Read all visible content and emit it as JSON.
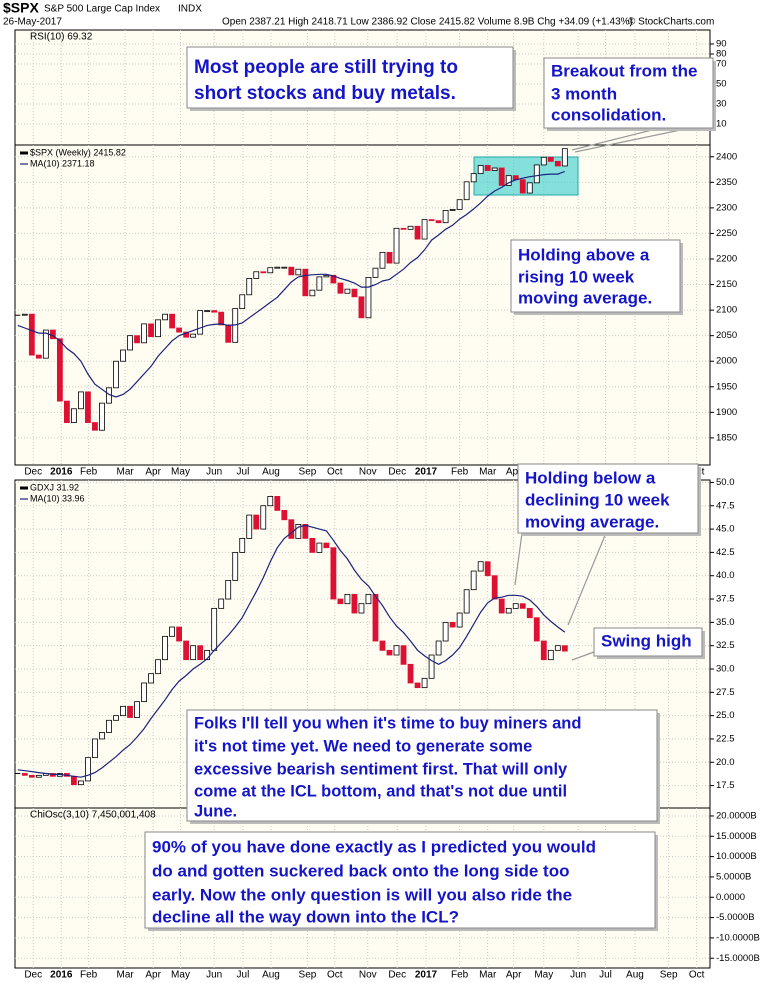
{
  "header": {
    "symbol": "$SPX",
    "name": "S&P 500 Large Cap Index",
    "exchange": "INDX",
    "date": "26-May-2017",
    "quote": "Open 2387.21  High 2418.71  Low 2386.92  Close 2415.82  Volume 8.9B  Chg +34.09 (+1.43%)",
    "credit": "© StockCharts.com"
  },
  "chart_data": [
    {
      "type": "indicator",
      "label": "RSI(10) 69.32",
      "ylim": [
        -11,
        104
      ],
      "yticks": [
        90,
        80,
        70,
        50,
        30,
        10
      ],
      "annotations": [
        {
          "lines": [
            "Most people are still trying to",
            "short stocks and buy metals."
          ]
        },
        {
          "lines": [
            "Breakout from the",
            "3 month",
            "consolidation."
          ]
        }
      ]
    },
    {
      "type": "candlestick",
      "xlim": [
        -0.4,
        98.7
      ],
      "ylim": [
        1797,
        2423
      ],
      "yticks": [
        2400,
        2350,
        2300,
        2250,
        2200,
        2150,
        2100,
        2050,
        2000,
        1950,
        1900,
        1850
      ],
      "xticks": [
        {
          "value": 2.2,
          "label": "Dec"
        },
        {
          "value": 6.2,
          "label": "2016"
        },
        {
          "value": 10.1,
          "label": "Feb"
        },
        {
          "value": 15.3,
          "label": "Mar"
        },
        {
          "value": 19.3,
          "label": "Apr"
        },
        {
          "value": 23.2,
          "label": "May"
        },
        {
          "value": 28.0,
          "label": "Jun"
        },
        {
          "value": 32.1,
          "label": "Jul"
        },
        {
          "value": 36.1,
          "label": "Aug"
        },
        {
          "value": 41.3,
          "label": "Sep"
        },
        {
          "value": 45.2,
          "label": "Oct"
        },
        {
          "value": 49.9,
          "label": "Nov"
        },
        {
          "value": 54.1,
          "label": "Dec"
        },
        {
          "value": 58.2,
          "label": "2017"
        },
        {
          "value": 63.0,
          "label": "Feb"
        },
        {
          "value": 67.0,
          "label": "Mar"
        },
        {
          "value": 70.7,
          "label": "Apr"
        },
        {
          "value": 75.0,
          "label": "May"
        },
        {
          "value": 79.9,
          "label": "Jun"
        },
        {
          "value": 83.8,
          "label": "Jul"
        },
        {
          "value": 88.0,
          "label": "Aug"
        },
        {
          "value": 92.8,
          "label": "Sep"
        },
        {
          "value": 96.8,
          "label": "Oct"
        }
      ],
      "series": [
        {
          "name": "$SPX (Weekly) 2415.82",
          "color": "#000000",
          "down_color": "#dd1133",
          "values": [
            2090,
            2092,
            2012,
            2006,
            2061,
            2044,
            1922,
            1880,
            1907,
            1940,
            1880,
            1865,
            1918,
            1948,
            2000,
            2022,
            2050,
            2036,
            2073,
            2048,
            2081,
            2092,
            2065,
            2057,
            2047,
            2053,
            2099,
            2099,
            2096,
            2071,
            2037,
            2103,
            2130,
            2162,
            2175,
            2173,
            2183,
            2184,
            2184,
            2169,
            2180,
            2128,
            2139,
            2165,
            2168,
            2153,
            2133,
            2141,
            2126,
            2085,
            2164,
            2182,
            2213,
            2192,
            2260,
            2258,
            2264,
            2239,
            2277,
            2275,
            2271,
            2295,
            2297,
            2316,
            2351,
            2367,
            2383,
            2373,
            2378,
            2344,
            2363,
            2355,
            2329,
            2349,
            2384,
            2399,
            2391,
            2382,
            2415.82
          ]
        },
        {
          "name": "MA(10) 2371.18",
          "color": "#1a237e",
          "values": [
            2070,
            2065,
            2060,
            2055,
            2055,
            2050,
            2040,
            2025,
            2015,
            2000,
            1975,
            1955,
            1945,
            1935,
            1930,
            1935,
            1945,
            1960,
            1975,
            1990,
            2010,
            2025,
            2040,
            2050,
            2055,
            2060,
            2065,
            2070,
            2072,
            2073,
            2070,
            2071,
            2075,
            2085,
            2095,
            2105,
            2115,
            2125,
            2140,
            2155,
            2165,
            2168,
            2169,
            2170,
            2170,
            2167,
            2162,
            2158,
            2153,
            2145,
            2145,
            2150,
            2157,
            2160,
            2170,
            2180,
            2193,
            2203,
            2218,
            2237,
            2247,
            2258,
            2266,
            2278,
            2287,
            2298,
            2310,
            2323,
            2333,
            2340,
            2349,
            2355,
            2358,
            2361,
            2363,
            2365,
            2366,
            2366,
            2371.18
          ]
        }
      ],
      "annotations": [
        {
          "lines": [
            "Holding above a",
            "rising 10 week",
            "moving average."
          ]
        }
      ]
    },
    {
      "type": "candlestick",
      "ylim": [
        15.1,
        50.26
      ],
      "yticks": [
        {
          "value": 50,
          "label": "50.0"
        },
        47.5,
        {
          "value": 45,
          "label": "45.0"
        },
        42.5,
        {
          "value": 40,
          "label": "40.0"
        },
        37.5,
        {
          "value": 35,
          "label": "35.0"
        },
        32.5,
        {
          "value": 30,
          "label": "30.0"
        },
        27.5,
        {
          "value": 25,
          "label": "25.0"
        },
        22.5,
        {
          "value": 20,
          "label": "20.0"
        },
        17.5
      ],
      "series": [
        {
          "name": "GDXJ 31.92",
          "color": "#000000",
          "down_color": "#dd1133",
          "values": [
            18.8,
            18.6,
            18.4,
            18.6,
            18.8,
            18.5,
            18.8,
            18.5,
            17.6,
            18.0,
            20.5,
            22.5,
            23.2,
            24.5,
            25.0,
            26.0,
            24.8,
            26.5,
            28.5,
            29.5,
            31.0,
            33.5,
            34.5,
            33.0,
            31.0,
            32.5,
            31.0,
            32.0,
            36.5,
            37.5,
            39.5,
            42.5,
            44.0,
            46.5,
            45.0,
            47.5,
            48.5,
            47.0,
            46.0,
            44.0,
            45.5,
            44.0,
            42.5,
            43.5,
            43.0,
            37.5,
            37.0,
            38.0,
            36.0,
            37.0,
            38.0,
            33.0,
            32.0,
            31.5,
            32.5,
            30.5,
            28.5,
            28.0,
            29.0,
            31.5,
            33.0,
            35.0,
            34.5,
            36.0,
            38.5,
            40.5,
            41.5,
            40.0,
            37.5,
            36.0,
            36.5,
            37.0,
            36.5,
            35.5,
            33.0,
            31.0,
            32.0,
            32.5,
            31.92
          ]
        },
        {
          "name": "MA(10) 33.96",
          "color": "#1a237e",
          "values": [
            19.2,
            19.1,
            19.0,
            18.9,
            18.8,
            18.7,
            18.7,
            18.6,
            18.5,
            18.4,
            18.6,
            18.9,
            19.4,
            20.0,
            20.6,
            21.3,
            21.9,
            22.7,
            23.6,
            24.7,
            25.7,
            26.7,
            27.8,
            28.7,
            29.3,
            30.0,
            30.5,
            31.1,
            32.0,
            32.8,
            33.6,
            34.5,
            35.5,
            36.9,
            38.3,
            39.8,
            41.5,
            43.0,
            44.0,
            44.6,
            45.2,
            45.4,
            45.2,
            45.0,
            44.8,
            43.8,
            42.7,
            41.8,
            40.6,
            39.6,
            38.9,
            37.8,
            36.8,
            35.6,
            34.6,
            33.9,
            33.0,
            32.0,
            31.4,
            30.9,
            30.5,
            30.9,
            31.5,
            32.3,
            33.5,
            34.8,
            36.1,
            37.1,
            37.6,
            37.7,
            37.9,
            37.9,
            37.8,
            37.4,
            36.7,
            35.8,
            35.1,
            34.5,
            33.96
          ]
        }
      ],
      "annotations": [
        {
          "lines": [
            "Holding below a",
            "declining 10 week",
            "moving average."
          ]
        },
        {
          "lines": [
            "Swing high"
          ]
        },
        {
          "lines": [
            "Folks I'll tell you when it's time to buy miners and",
            "it's not time yet. We need to generate some",
            "excessive bearish sentiment first. That will only",
            "come at the ICL bottom, and that's not due until",
            "June."
          ]
        }
      ]
    },
    {
      "type": "indicator",
      "label": "ChiOsc(3,10) 7,450,001,408",
      "ylim": [
        -17400000000,
        21960000000
      ],
      "yticks": [
        {
          "value": 20000000000,
          "label": "20.0000B"
        },
        {
          "value": 15000000000,
          "label": "15.0000B"
        },
        {
          "value": 10000000000,
          "label": "10.0000B"
        },
        {
          "value": 5000000000,
          "label": "5.0000B"
        },
        {
          "value": 0,
          "label": "0.0000"
        },
        {
          "value": -5000000000,
          "label": "-5.0000B"
        },
        {
          "value": -10000000000,
          "label": "-10.0000B"
        },
        {
          "value": -15000000000,
          "label": "-15.0000B"
        }
      ],
      "xticks": [
        {
          "value": 2.2,
          "label": "Dec"
        },
        {
          "value": 6.2,
          "label": "2016"
        },
        {
          "value": 10.1,
          "label": "Feb"
        },
        {
          "value": 15.3,
          "label": "Mar"
        },
        {
          "value": 19.3,
          "label": "Apr"
        },
        {
          "value": 23.2,
          "label": "May"
        },
        {
          "value": 28.0,
          "label": "Jun"
        },
        {
          "value": 32.1,
          "label": "Jul"
        },
        {
          "value": 36.1,
          "label": "Aug"
        },
        {
          "value": 41.3,
          "label": "Sep"
        },
        {
          "value": 45.2,
          "label": "Oct"
        },
        {
          "value": 49.9,
          "label": "Nov"
        },
        {
          "value": 54.1,
          "label": "Dec"
        },
        {
          "value": 58.2,
          "label": "2017"
        },
        {
          "value": 63.0,
          "label": "Feb"
        },
        {
          "value": 67.0,
          "label": "Mar"
        },
        {
          "value": 70.7,
          "label": "Apr"
        },
        {
          "value": 75.0,
          "label": "May"
        },
        {
          "value": 79.9,
          "label": "Jun"
        },
        {
          "value": 83.8,
          "label": "Jul"
        },
        {
          "value": 88.0,
          "label": "Aug"
        },
        {
          "value": 92.8,
          "label": "Sep"
        },
        {
          "value": 96.8,
          "label": "Oct"
        }
      ],
      "annotations": [
        {
          "lines": [
            "90% of you have done exactly as I predicted you would",
            "do and gotten suckered back onto the long side too",
            "early. Now the only question is will you also ride the",
            "decline all the way down into the ICL?"
          ]
        }
      ]
    }
  ]
}
